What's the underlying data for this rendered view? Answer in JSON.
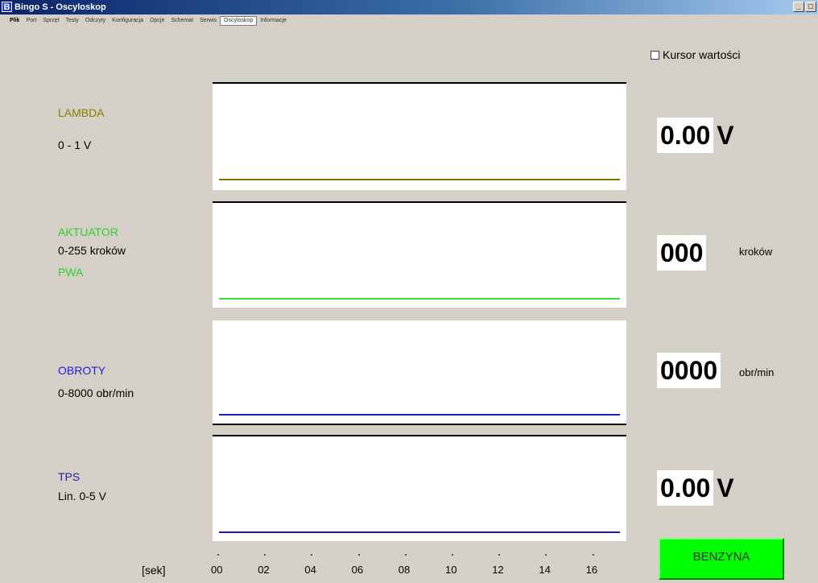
{
  "window": {
    "icon_letter": "B",
    "title": "Bingo S - Oscyloskop"
  },
  "menu": [
    {
      "label": "Plik"
    },
    {
      "label": "Port"
    },
    {
      "label": "Sprzęt"
    },
    {
      "label": "Testy"
    },
    {
      "label": "Odczyty"
    },
    {
      "label": "Konfiguracja"
    },
    {
      "label": "Opcje"
    },
    {
      "label": "Schemat"
    },
    {
      "label": "Serwis"
    },
    {
      "label": "Oscyloskop"
    },
    {
      "label": "Informacje"
    }
  ],
  "cursor_toggle": {
    "label": "Kursor wartości",
    "checked": false
  },
  "channels": [
    {
      "name": "LAMBDA",
      "range": "0 - 1 V",
      "name_color": "#8a7a00",
      "trace_color": "#807000",
      "value": "0.00",
      "unit": "V"
    },
    {
      "name": "AKTUATOR",
      "range": "0-255 kroków",
      "extra": "PWA",
      "name_color": "#33cc33",
      "trace_color": "#33dd33",
      "value": "000",
      "unit": "kroków"
    },
    {
      "name": "OBROTY",
      "range": "0-8000 obr/min",
      "name_color": "#2222cc",
      "trace_color": "#2020b0",
      "value": "0000",
      "unit": "obr/min"
    },
    {
      "name": "TPS",
      "range": "Lin. 0-5 V",
      "name_color": "#2222aa",
      "trace_color": "#202090",
      "value": "0.00",
      "unit": "V"
    }
  ],
  "time_axis": {
    "label": "[sek]",
    "ticks": [
      "00",
      "02",
      "04",
      "06",
      "08",
      "10",
      "12",
      "14",
      "16"
    ]
  },
  "fuel_button": {
    "label": "BENZYNA",
    "color": "#00ff00"
  }
}
